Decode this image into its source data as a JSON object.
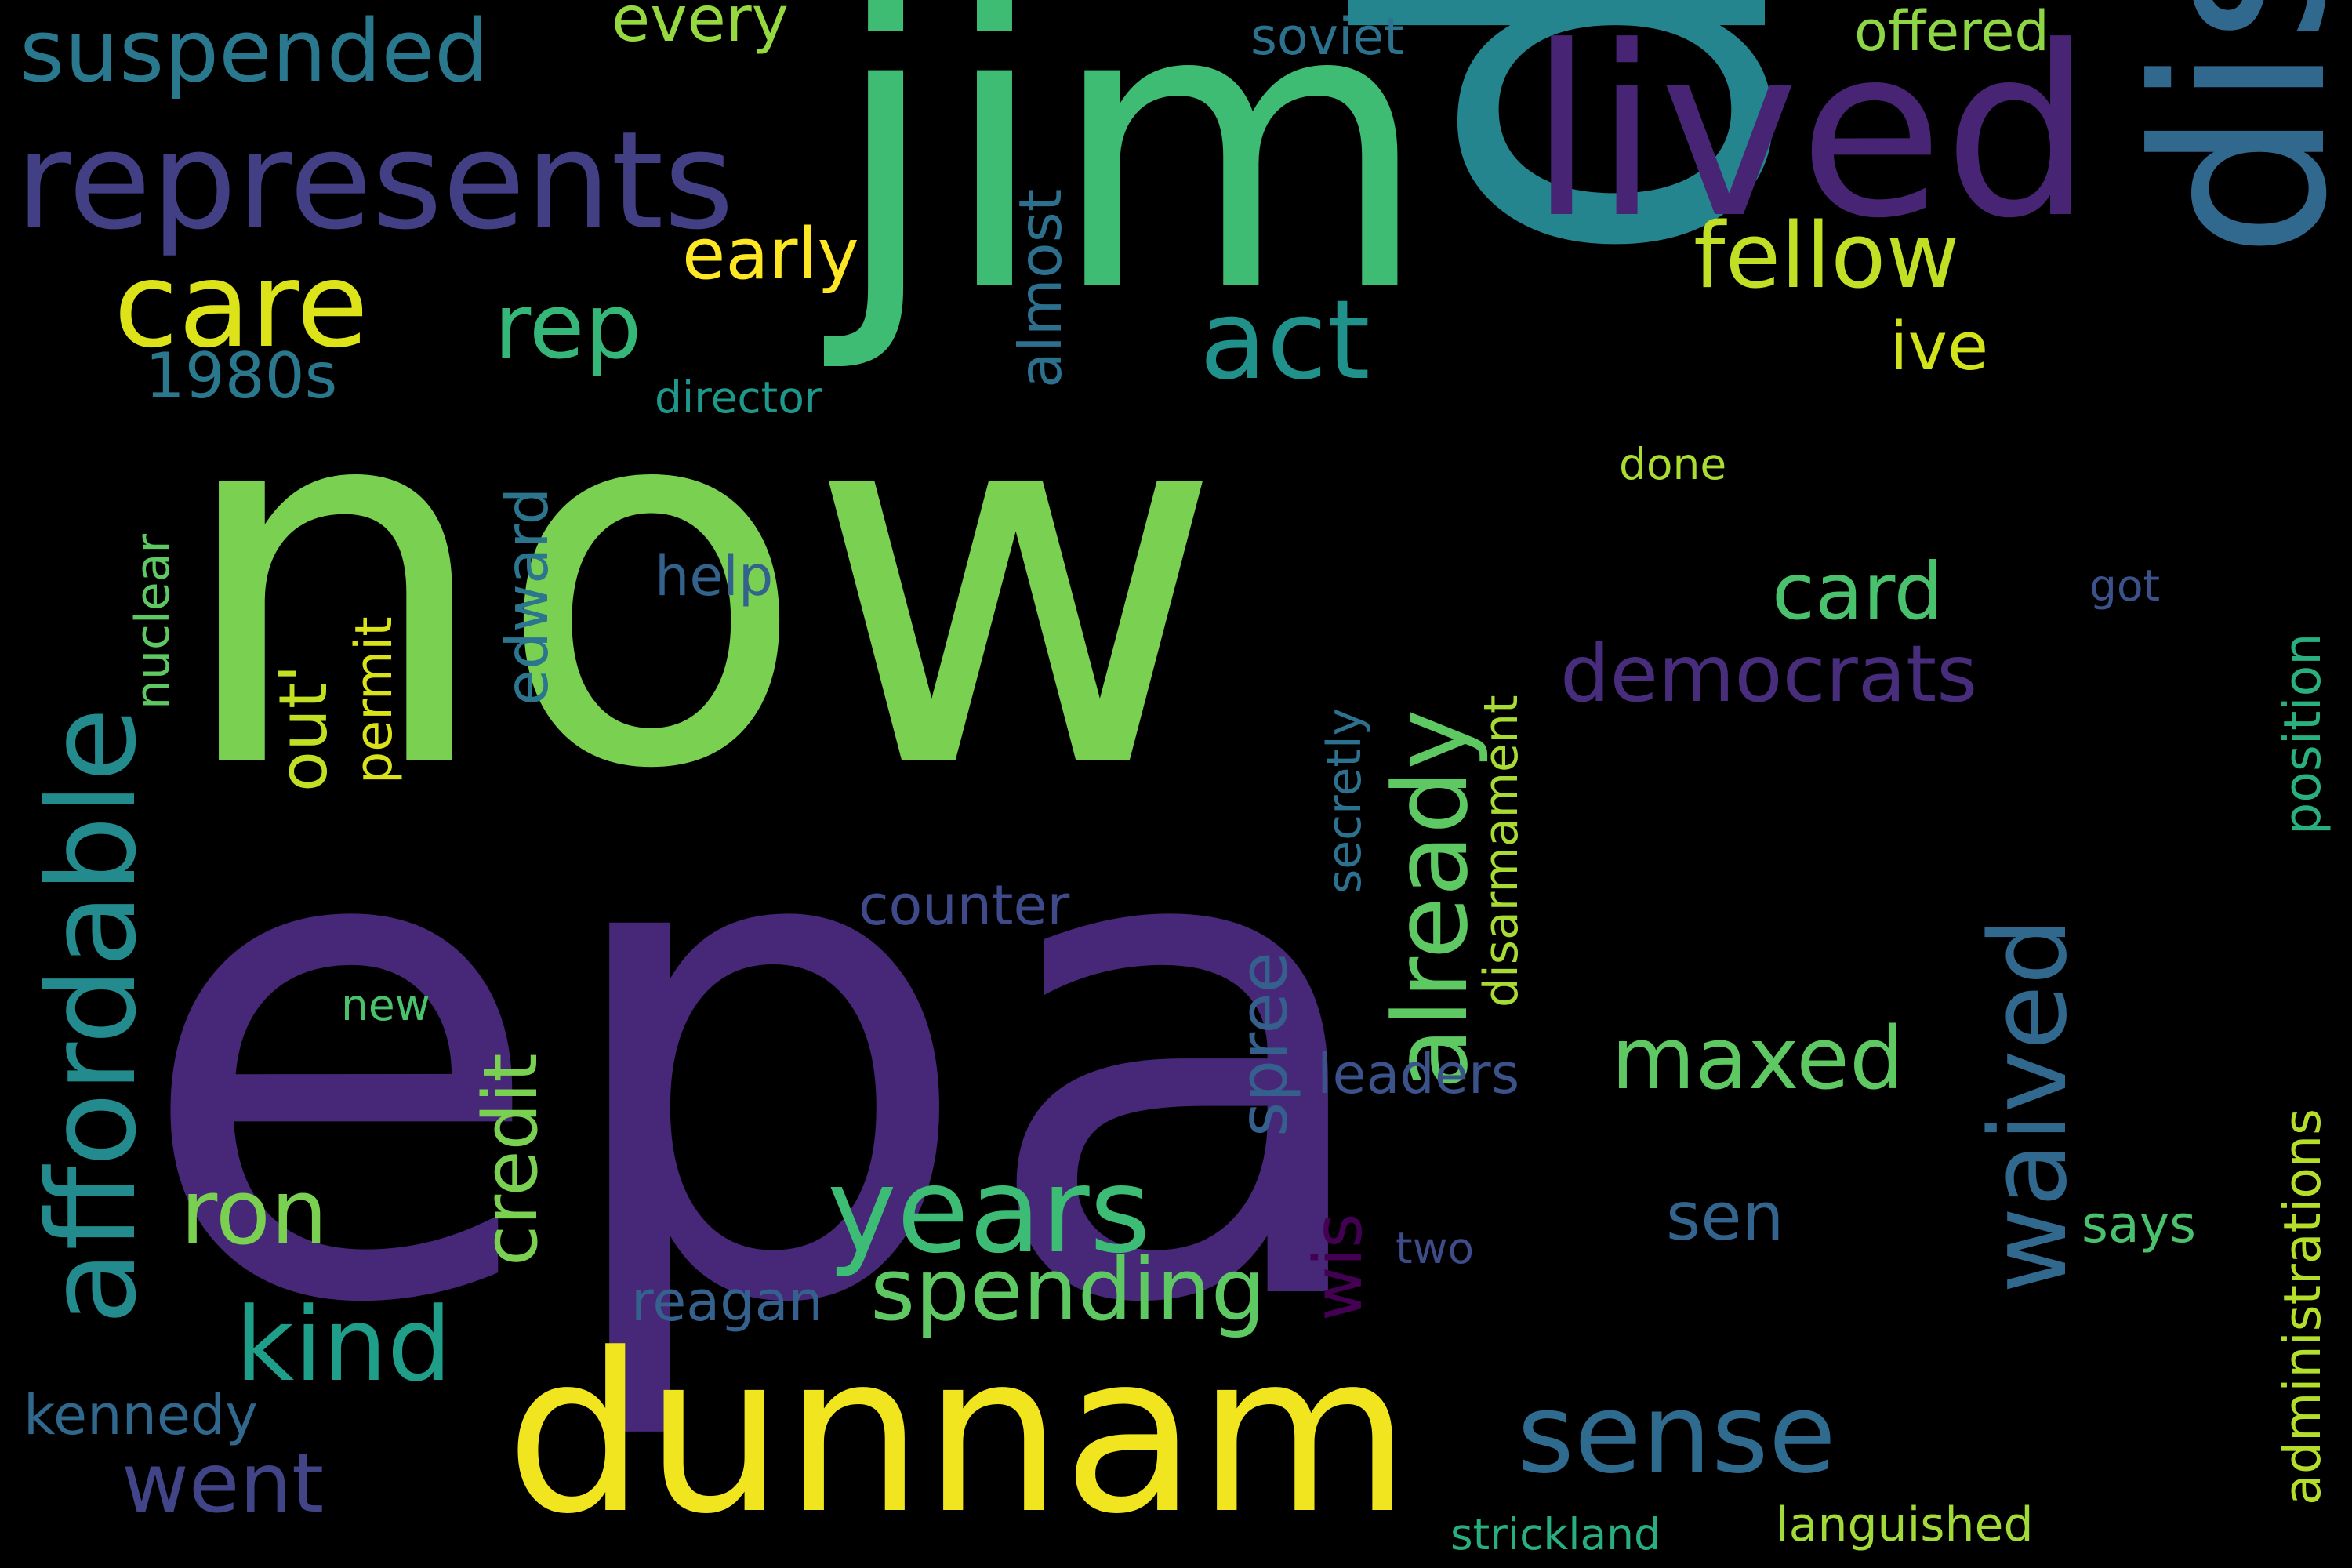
{
  "words": [
    {
      "text": "epa",
      "color": "#472777"
    },
    {
      "text": "now",
      "color": "#7ad151"
    },
    {
      "text": "day",
      "color": "#25858e"
    },
    {
      "text": "jim",
      "color": "#3fbc73"
    },
    {
      "text": "dunnam",
      "color": "#f0e51f"
    },
    {
      "text": "lived",
      "color": "#482475"
    },
    {
      "text": "district",
      "color": "#30688e"
    },
    {
      "text": "represents",
      "color": "#423f85"
    },
    {
      "text": "affordable",
      "color": "#238a8d"
    },
    {
      "text": "care",
      "color": "#dce319"
    },
    {
      "text": "years",
      "color": "#3cbc75"
    },
    {
      "text": "already",
      "color": "#5ec962"
    },
    {
      "text": "waived",
      "color": "#31688e"
    },
    {
      "text": "sense",
      "color": "#2f6b8e"
    },
    {
      "text": "act",
      "color": "#21918c"
    },
    {
      "text": "suspended",
      "color": "#2a788e"
    },
    {
      "text": "fellow",
      "color": "#c0df25"
    },
    {
      "text": "spending",
      "color": "#5ec962"
    },
    {
      "text": "democrats",
      "color": "#472d7b"
    },
    {
      "text": "kind",
      "color": "#1f9e89"
    },
    {
      "text": "ron",
      "color": "#7ad151"
    },
    {
      "text": "rep",
      "color": "#35b779"
    },
    {
      "text": "credit",
      "color": "#7ad151"
    },
    {
      "text": "maxed",
      "color": "#5ec962"
    },
    {
      "text": "went",
      "color": "#414487"
    },
    {
      "text": "spree",
      "color": "#355f8d"
    },
    {
      "text": "card",
      "color": "#4ac16d"
    },
    {
      "text": "early",
      "color": "#fde725"
    },
    {
      "text": "almost",
      "color": "#2d708e"
    },
    {
      "text": "out'",
      "color": "#c2df23"
    },
    {
      "text": "edward",
      "color": "#2b758e"
    },
    {
      "text": "1980s",
      "color": "#2a788e"
    },
    {
      "text": "wis",
      "color": "#440154"
    },
    {
      "text": "sen",
      "color": "#32648e"
    },
    {
      "text": "ive",
      "color": "#d2e21b"
    },
    {
      "text": "every",
      "color": "#95d840"
    },
    {
      "text": "offered",
      "color": "#8ed645"
    },
    {
      "text": "nuclear",
      "color": "#5ec962"
    },
    {
      "text": "permit",
      "color": "#dae319"
    },
    {
      "text": "position",
      "color": "#2ab07f"
    },
    {
      "text": "administrations",
      "color": "#b5de2b"
    },
    {
      "text": "disarmament",
      "color": "#a8db34"
    },
    {
      "text": "secretly",
      "color": "#2c718e"
    },
    {
      "text": "leaders",
      "color": "#3b528b"
    },
    {
      "text": "counter",
      "color": "#3e4a89"
    },
    {
      "text": "reagan",
      "color": "#34618d"
    },
    {
      "text": "kennedy",
      "color": "#31688e"
    },
    {
      "text": "soviet",
      "color": "#2c728e"
    },
    {
      "text": "director",
      "color": "#1f988b"
    },
    {
      "text": "help",
      "color": "#33638d"
    },
    {
      "text": "done",
      "color": "#aadc32"
    },
    {
      "text": "got",
      "color": "#3b528b"
    },
    {
      "text": "says",
      "color": "#4ac16d"
    },
    {
      "text": "two",
      "color": "#3e4c8a"
    },
    {
      "text": "new",
      "color": "#4ac16d"
    },
    {
      "text": "strickland",
      "color": "#29af7f"
    },
    {
      "text": "languished",
      "color": "#a2da37"
    }
  ]
}
